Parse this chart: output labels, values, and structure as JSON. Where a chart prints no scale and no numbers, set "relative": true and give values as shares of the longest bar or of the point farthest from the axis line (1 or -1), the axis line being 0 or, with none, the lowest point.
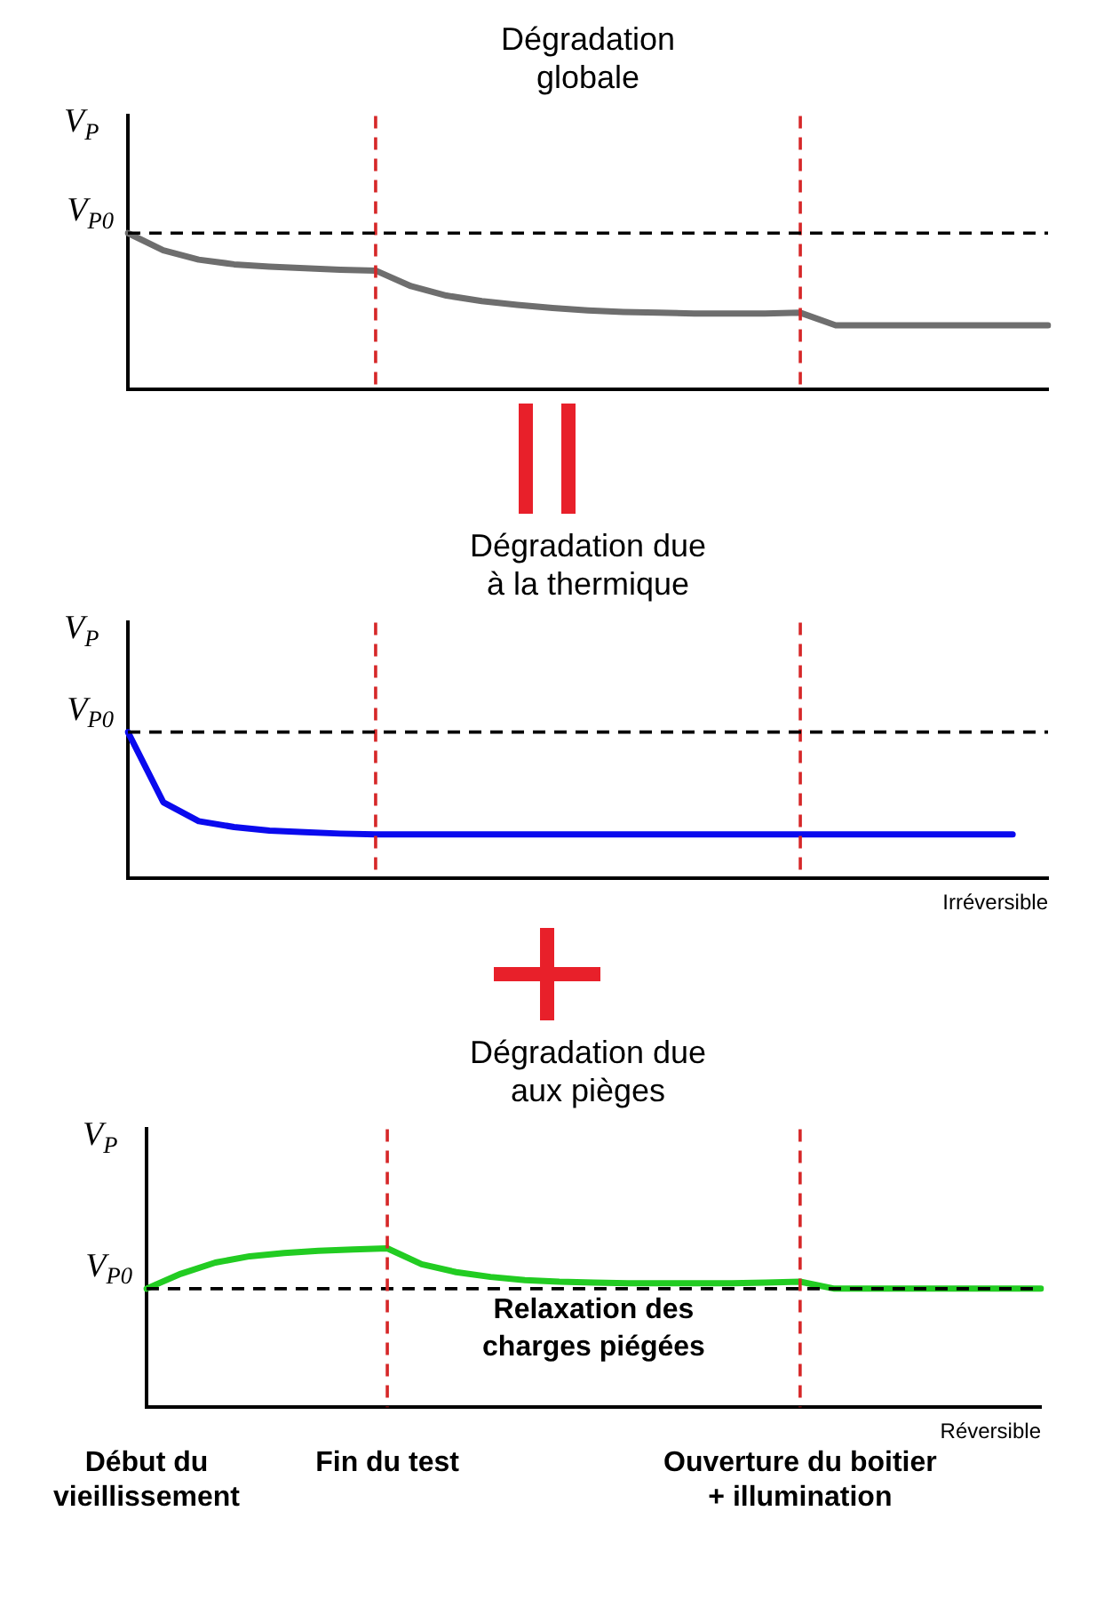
{
  "chart_data": [
    {
      "type": "line",
      "title": "Dégradation globale",
      "ylabel": "V$_{P}$",
      "relative": true,
      "grid": false,
      "legend": false,
      "marker": "none",
      "line_style": "solid",
      "categories": [
        null,
        null,
        null,
        null,
        null,
        null,
        null,
        null,
        null,
        null,
        null,
        null,
        null,
        null,
        null,
        null,
        null,
        null,
        null,
        null,
        null,
        null,
        null,
        null,
        null,
        null,
        null
      ],
      "series": [
        {
          "color": "#6e6e6e",
          "values": [
            1,
            0.89,
            0.83,
            0.8,
            0.785,
            0.775,
            0.765,
            0.76,
            0.66,
            0.6,
            0.565,
            0.54,
            0.52,
            0.505,
            0.495,
            0.49,
            0.485,
            0.485,
            0.485,
            0.49,
            0.41,
            0.41,
            0.41,
            0.41,
            0.41,
            0.41,
            0.41
          ]
        }
      ],
      "ref_lines": [
        {
          "axis": "y",
          "value": 1,
          "label": "V$_{P0}$",
          "color": "#000000",
          "line_style": "dashed"
        }
      ]
    },
    {
      "type": "line",
      "title": "Dégradation due à la thermique",
      "ylabel": "V$_{P}$",
      "xlabel": "Irréversible",
      "relative": true,
      "grid": false,
      "legend": false,
      "marker": "none",
      "line_style": "solid",
      "categories": [
        null,
        null,
        null,
        null,
        null,
        null,
        null,
        null,
        null,
        null,
        null,
        null,
        null,
        null,
        null,
        null,
        null,
        null,
        null,
        null,
        null,
        null,
        null,
        null,
        null,
        null,
        null
      ],
      "series": [
        {
          "color": "#0a0aee",
          "values": [
            1,
            0.52,
            0.39,
            0.35,
            0.325,
            0.315,
            0.305,
            0.3,
            0.3,
            0.3,
            0.3,
            0.3,
            0.3,
            0.3,
            0.3,
            0.3,
            0.3,
            0.3,
            0.3,
            0.3,
            0.3,
            0.3,
            0.3,
            0.3,
            0.3,
            0.3,
            null
          ]
        }
      ],
      "ref_lines": [
        {
          "axis": "y",
          "value": 1,
          "label": "V$_{P0}$",
          "color": "#000000",
          "line_style": "dashed"
        }
      ]
    },
    {
      "type": "line",
      "title": "Dégradation due aux pièges",
      "ylabel": "V$_{P}$",
      "xlabel": "Réversible",
      "relative": true,
      "grid": false,
      "legend": false,
      "marker": "none",
      "line_style": "solid",
      "tick_labels": "x",
      "categories": [
        "Début du vieillissement",
        null,
        null,
        null,
        null,
        null,
        null,
        "Fin du test",
        null,
        null,
        null,
        null,
        null,
        null,
        null,
        null,
        null,
        null,
        null,
        "Ouverture du boitier + illumination",
        null,
        null,
        null,
        null,
        null,
        null,
        null
      ],
      "annotations": [
        "Relaxation des charges piégées"
      ],
      "series": [
        {
          "color": "#22cc22",
          "values": [
            0.746,
            0.84,
            0.91,
            0.95,
            0.97,
            0.985,
            0.993,
            1,
            0.9,
            0.85,
            0.82,
            0.8,
            0.79,
            0.785,
            0.78,
            0.78,
            0.78,
            0.78,
            0.785,
            0.79,
            0.746,
            0.746,
            0.746,
            0.746,
            0.746,
            0.746,
            0.746
          ]
        }
      ],
      "ref_lines": [
        {
          "axis": "y",
          "value": 0.746,
          "label": "V$_{P0}$",
          "color": "#000000",
          "line_style": "dashed"
        },
        {
          "axis": "x",
          "value": "Fin du test",
          "color": "#d62728",
          "line_style": "dashed"
        },
        {
          "axis": "x",
          "value": "Ouverture du boitier + illumination",
          "color": "#d62728",
          "line_style": "dashed"
        }
      ]
    }
  ]
}
